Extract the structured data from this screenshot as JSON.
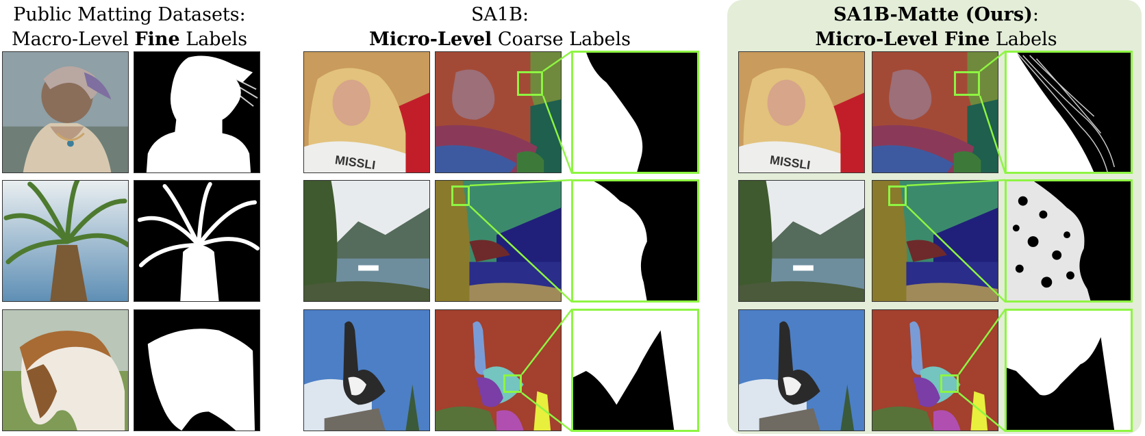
{
  "figure": {
    "left_title": {
      "line1": "Public Matting Datasets:",
      "line2_pre": "Macro-Level ",
      "line2_bold": "Fine",
      "line2_post": " Labels"
    },
    "middle_title": {
      "line1": "SA1B:",
      "line2_bold": "Micro-Level",
      "line2_post": " Coarse Labels"
    },
    "right_title": {
      "line1_bold": "SA1B-Matte (Ours)",
      "line1_post": ":",
      "line2_bold": "Micro-Level Fine",
      "line2_post": " Labels"
    },
    "photo_text": {
      "sash": "MISSLI"
    },
    "highlight_color": "#8ef542",
    "panel_color": "#e3edd8",
    "rows": [
      {
        "subject": "woman-hair"
      },
      {
        "subject": "palm-tree-landscape"
      },
      {
        "subject": "horse-goose"
      }
    ]
  }
}
